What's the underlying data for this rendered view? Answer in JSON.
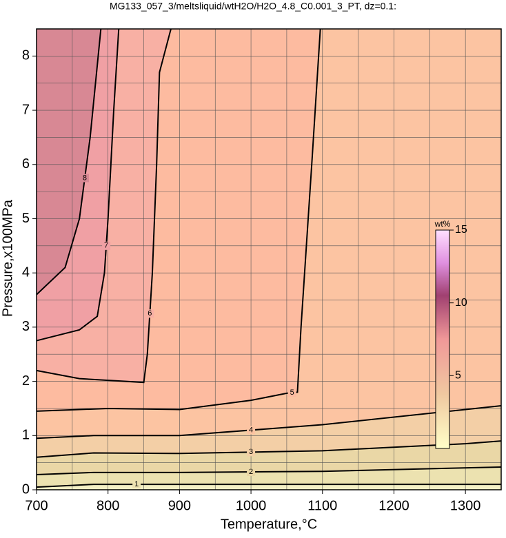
{
  "chart_data": {
    "type": "contour",
    "title": "MG133_057_3/meltsliquid/wtH2O/H2O_4.8_C0.001_3_PT, dz=0.1:",
    "x_label": "Temperature,°C",
    "y_label": "Pressure,x100MPa",
    "xlim": [
      700,
      1350
    ],
    "ylim": [
      0,
      8.5
    ],
    "xticks": [
      700,
      800,
      900,
      1000,
      1100,
      1200,
      1300
    ],
    "yticks": [
      0,
      1,
      2,
      3,
      4,
      5,
      6,
      7,
      8
    ],
    "x_grid": [
      750,
      800,
      850,
      900,
      950,
      1000,
      1050,
      1100,
      1150,
      1200,
      1250,
      1300
    ],
    "y_grid": [
      0.5,
      1,
      1.5,
      2,
      2.5,
      3,
      3.5,
      4,
      4.5,
      5,
      5.5,
      6,
      6.5,
      7,
      7.5,
      8
    ],
    "background": "#f3efc4",
    "contours": [
      {
        "level": 1,
        "fill": "#ece2b0",
        "T": [
          700,
          780,
          900,
          1350
        ],
        "P": [
          0.05,
          0.1,
          0.1,
          0.1
        ]
      },
      {
        "level": 2,
        "fill": "#ead7a6",
        "T": [
          700,
          780,
          900,
          1100,
          1350
        ],
        "P": [
          0.28,
          0.32,
          0.32,
          0.34,
          0.42
        ]
      },
      {
        "level": 3,
        "fill": "#f3cfa6",
        "T": [
          700,
          780,
          900,
          1100,
          1300,
          1350
        ],
        "P": [
          0.6,
          0.68,
          0.67,
          0.72,
          0.85,
          0.9
        ]
      },
      {
        "level": 4,
        "fill": "#fcc4a2",
        "T": [
          700,
          780,
          900,
          1100,
          1350
        ],
        "P": [
          0.95,
          1.0,
          1.0,
          1.2,
          1.55
        ]
      },
      {
        "level": 5,
        "fill": "#fdbba0",
        "T": [
          700,
          800,
          900,
          1000,
          1050,
          1065,
          1070,
          1085,
          1097
        ],
        "P": [
          1.45,
          1.5,
          1.48,
          1.65,
          1.78,
          1.8,
          3,
          6,
          8.5
        ]
      },
      {
        "level": 6,
        "fill": "#f8b0a4",
        "T": [
          700,
          760,
          850,
          855,
          862,
          868,
          872,
          888
        ],
        "P": [
          2.2,
          2.05,
          1.98,
          2.5,
          4,
          6,
          7.7,
          8.5
        ]
      },
      {
        "level": 7,
        "fill": "#f0a0a4",
        "T": [
          700,
          760,
          785,
          795,
          800,
          808,
          815
        ],
        "P": [
          2.75,
          2.95,
          3.2,
          4,
          5,
          7,
          8.5
        ]
      },
      {
        "level": 8,
        "fill": "#d88894",
        "T": [
          700,
          740,
          760,
          775,
          790
        ],
        "P": [
          3.6,
          4.1,
          5,
          6.5,
          8.5
        ]
      }
    ],
    "colorbar": {
      "label": "wt%",
      "lim": [
        0,
        15
      ],
      "ticks": [
        5,
        10,
        15
      ]
    }
  }
}
